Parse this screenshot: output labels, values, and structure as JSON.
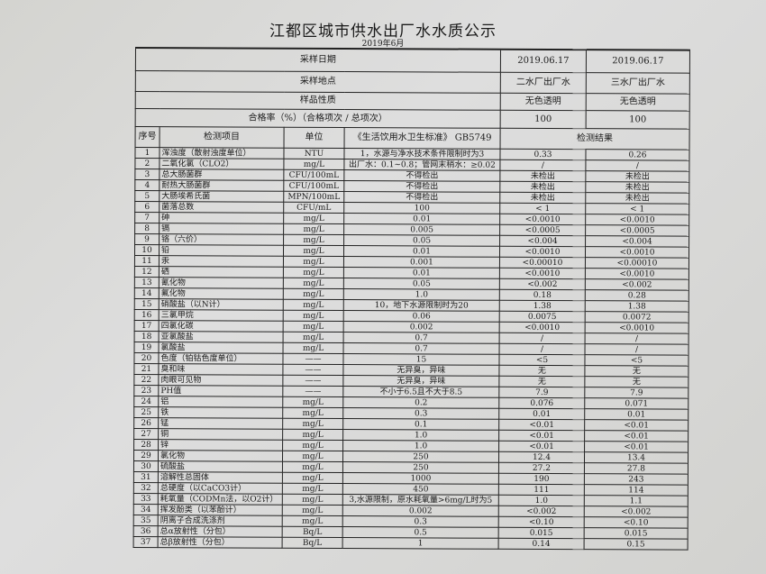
{
  "title": "江都区城市供水出厂水水质公示",
  "subtitle": "2019年6月",
  "meta": [
    {
      "label": "采样日期",
      "v1": "2019.06.17",
      "v2": "2019.06.17"
    },
    {
      "label": "采样地点",
      "v1": "二水厂出厂水",
      "v2": "三水厂出厂水"
    },
    {
      "label": "样品性质",
      "v1": "无色透明",
      "v2": "无色透明"
    },
    {
      "label": "合格率（%）（合格项次 / 总项次）",
      "v1": "100",
      "v2": "100"
    }
  ],
  "header": {
    "no": "序号",
    "item": "检测项目",
    "unit": "单位",
    "standard": "《生活饮用水卫生标准》 GB5749",
    "result": "检测结果"
  },
  "rows": [
    {
      "no": "1",
      "item": "浑浊度（散射浊度单位）",
      "unit": "NTU",
      "std": "1，水源与净水技术条件限制时为3",
      "r1": "0.33",
      "r2": "0.26"
    },
    {
      "no": "2",
      "item": "二氧化氯（CLO2）",
      "unit": "mg/L",
      "std": "出厂水：0.1~0.8；管网末稍水：≥0.02",
      "r1": "/",
      "r2": "/"
    },
    {
      "no": "3",
      "item": "总大肠菌群",
      "unit": "CFU/100mL",
      "std": "不得检出",
      "r1": "未检出",
      "r2": "未检出"
    },
    {
      "no": "4",
      "item": "耐热大肠菌群",
      "unit": "CFU/100mL",
      "std": "不得检出",
      "r1": "未检出",
      "r2": "未检出"
    },
    {
      "no": "5",
      "item": "大肠埃希氏菌",
      "unit": "MPN/100mL",
      "std": "不得检出",
      "r1": "未检出",
      "r2": "未检出"
    },
    {
      "no": "6",
      "item": "菌落总数",
      "unit": "CFU/mL",
      "std": "100",
      "r1": "< 1",
      "r2": "< 1"
    },
    {
      "no": "7",
      "item": "砷",
      "unit": "mg/L",
      "std": "0.01",
      "r1": "<0.0010",
      "r2": "<0.0010"
    },
    {
      "no": "8",
      "item": "镉",
      "unit": "mg/L",
      "std": "0.005",
      "r1": "<0.0005",
      "r2": "<0.0005"
    },
    {
      "no": "9",
      "item": "铬（六价）",
      "unit": "mg/L",
      "std": "0.05",
      "r1": "<0.004",
      "r2": "<0.004"
    },
    {
      "no": "10",
      "item": "铅",
      "unit": "mg/L",
      "std": "0.01",
      "r1": "<0.0010",
      "r2": "<0.0010"
    },
    {
      "no": "11",
      "item": "汞",
      "unit": "mg/L",
      "std": "0.001",
      "r1": "<0.00010",
      "r2": "<0.00010"
    },
    {
      "no": "12",
      "item": "硒",
      "unit": "mg/L",
      "std": "0.01",
      "r1": "<0.0010",
      "r2": "<0.0010"
    },
    {
      "no": "13",
      "item": "氰化物",
      "unit": "mg/L",
      "std": "0.05",
      "r1": "<0.002",
      "r2": "<0.002"
    },
    {
      "no": "14",
      "item": "氟化物",
      "unit": "mg/L",
      "std": "1.0",
      "r1": "0.18",
      "r2": "0.28"
    },
    {
      "no": "15",
      "item": "硝酸盐（以N计）",
      "unit": "mg/L",
      "std": "10，地下水源限制时为20",
      "r1": "1.38",
      "r2": "1.38"
    },
    {
      "no": "16",
      "item": "三氯甲烷",
      "unit": "mg/L",
      "std": "0.06",
      "r1": "0.0075",
      "r2": "0.0072"
    },
    {
      "no": "17",
      "item": "四氯化碳",
      "unit": "mg/L",
      "std": "0.002",
      "r1": "<0.0010",
      "r2": "<0.0010"
    },
    {
      "no": "18",
      "item": "亚氯酸盐",
      "unit": "mg/L",
      "std": "0.7",
      "r1": "/",
      "r2": "/"
    },
    {
      "no": "19",
      "item": "氯酸盐",
      "unit": "mg/L",
      "std": "0.7",
      "r1": "/",
      "r2": "/"
    },
    {
      "no": "20",
      "item": "色度（铂钴色度单位）",
      "unit": "——",
      "std": "15",
      "r1": "<5",
      "r2": "<5"
    },
    {
      "no": "21",
      "item": "臭和味",
      "unit": "——",
      "std": "无异臭，异味",
      "r1": "无",
      "r2": "无"
    },
    {
      "no": "22",
      "item": "肉眼可见物",
      "unit": "——",
      "std": "无异臭，异味",
      "r1": "无",
      "r2": "无"
    },
    {
      "no": "23",
      "item": "PH值",
      "unit": "——",
      "std": "不小于6.5且不大于8.5",
      "r1": "7.9",
      "r2": "7.9"
    },
    {
      "no": "24",
      "item": "铝",
      "unit": "mg/L",
      "std": "0.2",
      "r1": "0.076",
      "r2": "0.071"
    },
    {
      "no": "25",
      "item": "铁",
      "unit": "mg/L",
      "std": "0.3",
      "r1": "0.01",
      "r2": "0.01"
    },
    {
      "no": "26",
      "item": "锰",
      "unit": "mg/L",
      "std": "0.1",
      "r1": "<0.01",
      "r2": "<0.01"
    },
    {
      "no": "27",
      "item": "铜",
      "unit": "mg/L",
      "std": "1.0",
      "r1": "<0.01",
      "r2": "<0.01"
    },
    {
      "no": "28",
      "item": "锌",
      "unit": "mg/L",
      "std": "1.0",
      "r1": "<0.01",
      "r2": "<0.01"
    },
    {
      "no": "29",
      "item": "氯化物",
      "unit": "mg/L",
      "std": "250",
      "r1": "12.4",
      "r2": "13.4"
    },
    {
      "no": "30",
      "item": "硫酸盐",
      "unit": "mg/L",
      "std": "250",
      "r1": "27.2",
      "r2": "27.8"
    },
    {
      "no": "31",
      "item": "溶解性总固体",
      "unit": "mg/L",
      "std": "1000",
      "r1": "190",
      "r2": "243"
    },
    {
      "no": "32",
      "item": "总硬度（以CaCO3计）",
      "unit": "mg/L",
      "std": "450",
      "r1": "111",
      "r2": "114"
    },
    {
      "no": "33",
      "item": "耗氧量（CODMn法，以O2计）",
      "unit": "mg/L",
      "std": "3,水源限制，原水耗氧量>6mg/L时为5",
      "r1": "1.0",
      "r2": "1.1"
    },
    {
      "no": "34",
      "item": "挥发酚类（以苯酚计）",
      "unit": "mg/L",
      "std": "0.002",
      "r1": "<0.002",
      "r2": "<0.002"
    },
    {
      "no": "35",
      "item": "阴离子合成洗涤剂",
      "unit": "mg/L",
      "std": "0.3",
      "r1": "<0.10",
      "r2": "<0.10"
    },
    {
      "no": "36",
      "item": "总α放射性（分包）",
      "unit": "Bq/L",
      "std": "0.5",
      "r1": "0.015",
      "r2": "0.015"
    },
    {
      "no": "37",
      "item": "总β放射性（分包）",
      "unit": "Bq/L",
      "std": "1",
      "r1": "0.14",
      "r2": "0.15"
    }
  ]
}
